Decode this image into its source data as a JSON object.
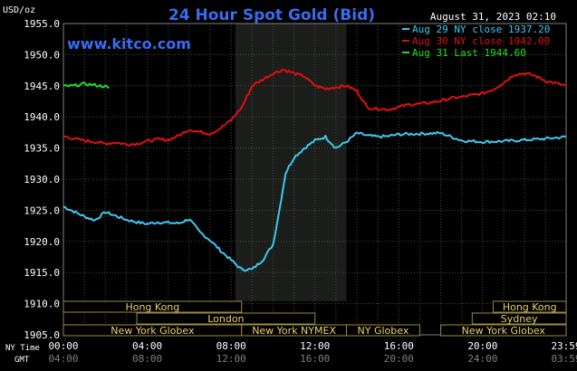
{
  "chart_data": {
    "type": "line",
    "title": "24 Hour Spot Gold (Bid)",
    "ylabel": "USD/oz",
    "watermark": "www.kitco.com",
    "date": "August 31, 2023 02:10",
    "ylim": [
      1905,
      1955
    ],
    "y_ticks": [
      "1955.0",
      "1950.0",
      "1945.0",
      "1940.0",
      "1935.0",
      "1930.0",
      "1925.0",
      "1920.0",
      "1915.0",
      "1910.0",
      "1905.0"
    ],
    "x_tick_labels": [
      "00:00",
      "04:00",
      "08:00",
      "12:00",
      "16:00",
      "20:00",
      "23:59"
    ],
    "gmt_tick_labels": [
      "04:00",
      "08:00",
      "12:00",
      "16:00",
      "20:00",
      "24:00",
      "03:59"
    ],
    "ny_time_label": "NY Time",
    "gmt_label": "GMT",
    "legend": [
      "Aug 29 NY close 1937.20",
      "Aug 30 NY close 1942.00",
      "Aug 31 Last 1944.60"
    ],
    "series": [
      {
        "name": "Aug 29 NY close 1937.20",
        "color": "#3fc8f0",
        "points": [
          [
            0,
            1925.6
          ],
          [
            0.5,
            1924.8
          ],
          [
            1,
            1924.0
          ],
          [
            1.5,
            1923.4
          ],
          [
            2,
            1924.7
          ],
          [
            2.5,
            1924.1
          ],
          [
            3,
            1923.5
          ],
          [
            3.5,
            1923.1
          ],
          [
            4,
            1922.8
          ],
          [
            4.5,
            1923.1
          ],
          [
            5,
            1923.0
          ],
          [
            5.5,
            1922.9
          ],
          [
            6,
            1923.6
          ],
          [
            6.5,
            1921.5
          ],
          [
            7,
            1920.2
          ],
          [
            7.5,
            1918.5
          ],
          [
            8,
            1917.0
          ],
          [
            8.5,
            1915.5
          ],
          [
            9,
            1915.5
          ],
          [
            9.5,
            1917.0
          ],
          [
            10,
            1919.5
          ],
          [
            10.3,
            1925.0
          ],
          [
            10.6,
            1931.0
          ],
          [
            11,
            1933.5
          ],
          [
            11.5,
            1935.0
          ],
          [
            12,
            1936.2
          ],
          [
            12.5,
            1936.8
          ],
          [
            13,
            1935.0
          ],
          [
            13.5,
            1936.0
          ],
          [
            14,
            1937.4
          ],
          [
            14.5,
            1937.0
          ],
          [
            15,
            1936.8
          ],
          [
            15.5,
            1936.9
          ],
          [
            16,
            1937.2
          ],
          [
            17,
            1937.3
          ],
          [
            18,
            1937.4
          ],
          [
            19,
            1936.2
          ],
          [
            20,
            1936.0
          ],
          [
            21,
            1936.1
          ],
          [
            22,
            1936.3
          ],
          [
            23,
            1936.5
          ],
          [
            23.98,
            1936.8
          ]
        ]
      },
      {
        "name": "Aug 30 NY close 1942.00",
        "color": "#e01010",
        "points": [
          [
            0,
            1936.9
          ],
          [
            0.5,
            1936.5
          ],
          [
            1,
            1936.2
          ],
          [
            1.5,
            1936.0
          ],
          [
            2,
            1935.7
          ],
          [
            2.5,
            1935.9
          ],
          [
            3,
            1935.6
          ],
          [
            3.5,
            1935.7
          ],
          [
            4,
            1936.1
          ],
          [
            4.5,
            1936.4
          ],
          [
            5,
            1936.3
          ],
          [
            5.5,
            1937.0
          ],
          [
            6,
            1938.0
          ],
          [
            6.5,
            1937.6
          ],
          [
            7,
            1937.3
          ],
          [
            7.5,
            1938.2
          ],
          [
            8,
            1939.5
          ],
          [
            8.5,
            1941.5
          ],
          [
            9,
            1945.0
          ],
          [
            9.5,
            1946.0
          ],
          [
            10,
            1947.0
          ],
          [
            10.5,
            1947.6
          ],
          [
            11,
            1947.0
          ],
          [
            11.5,
            1946.5
          ],
          [
            12,
            1945.0
          ],
          [
            12.5,
            1944.5
          ],
          [
            13,
            1944.8
          ],
          [
            13.5,
            1945.0
          ],
          [
            14,
            1944.2
          ],
          [
            14.5,
            1941.5
          ],
          [
            15,
            1941.3
          ],
          [
            15.5,
            1941.2
          ],
          [
            16,
            1941.6
          ],
          [
            16.5,
            1942.0
          ],
          [
            17,
            1942.1
          ],
          [
            17.5,
            1942.3
          ],
          [
            18,
            1942.6
          ],
          [
            18.5,
            1943.0
          ],
          [
            19,
            1943.2
          ],
          [
            20,
            1943.8
          ],
          [
            20.5,
            1944.4
          ],
          [
            21,
            1945.5
          ],
          [
            21.5,
            1946.8
          ],
          [
            22,
            1947.0
          ],
          [
            22.5,
            1946.6
          ],
          [
            23,
            1945.8
          ],
          [
            23.98,
            1945.0
          ]
        ]
      },
      {
        "name": "Aug 31 Last 1944.60",
        "color": "#22dd22",
        "points": [
          [
            0,
            1944.9
          ],
          [
            0.5,
            1945.0
          ],
          [
            1,
            1945.3
          ],
          [
            1.5,
            1945.1
          ],
          [
            2,
            1944.9
          ],
          [
            2.17,
            1944.6
          ]
        ]
      }
    ],
    "sessions": [
      {
        "name": "Hong Kong",
        "start": 0,
        "end": 8.5,
        "row": 1
      },
      {
        "name": "London",
        "start": 3.5,
        "end": 12,
        "row": 2
      },
      {
        "name": "New York Globex",
        "start": 0,
        "end": 8.5,
        "row": 3
      },
      {
        "name": "New York NYMEX",
        "start": 8.5,
        "end": 13.5,
        "row": 3
      },
      {
        "name": "NY Globex",
        "start": 13.5,
        "end": 17,
        "row": 3
      },
      {
        "name": "New York Globex",
        "start": 18,
        "end": 23.98,
        "row": 3
      },
      {
        "name": "Hong Kong",
        "start": 20.5,
        "end": 23.98,
        "row": 1
      },
      {
        "name": "Sydney",
        "start": 19.5,
        "end": 23.98,
        "row": 2
      }
    ],
    "highlight": {
      "start": 8.2,
      "end": 13.5
    },
    "grid": true
  }
}
